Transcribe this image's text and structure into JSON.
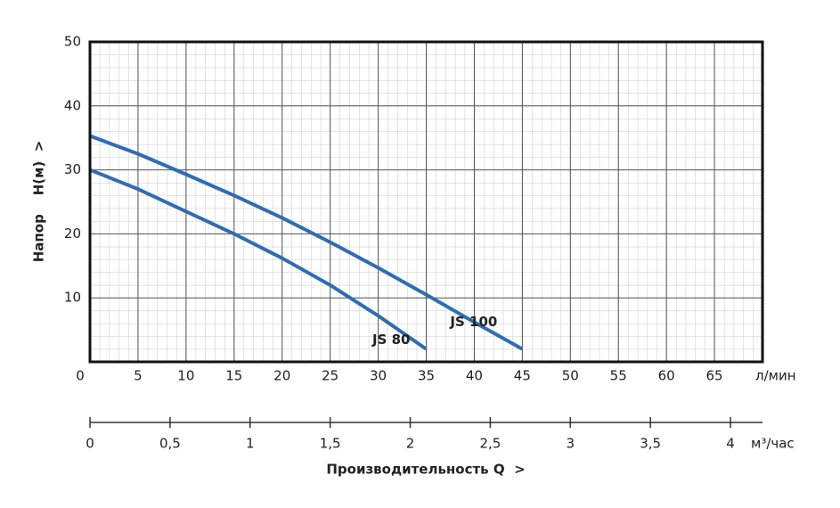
{
  "chart_data": {
    "type": "line",
    "y_label": "Напор    H(м)  >",
    "x_label": "Производительность Q  >",
    "x_unit": "л/мин",
    "x2_unit": "м³/час",
    "xlim": [
      0,
      70
    ],
    "xticks": [
      0,
      5,
      10,
      15,
      20,
      25,
      30,
      35,
      40,
      45,
      50,
      55,
      60,
      65
    ],
    "x2lim": [
      0,
      4.2
    ],
    "x2ticks": [
      0,
      {
        "value": 0.5,
        "label": "0,5"
      },
      1,
      {
        "value": 1.5,
        "label": "1,5"
      },
      2,
      {
        "value": 2.5,
        "label": "2,5"
      },
      3,
      {
        "value": 3.5,
        "label": "3,5"
      },
      4
    ],
    "ylim": [
      0,
      50
    ],
    "yticks": [
      10,
      20,
      30,
      40,
      50
    ],
    "grid": true,
    "series": [
      {
        "name": "JS 80",
        "color": "#2e6db4",
        "x": [
          0,
          5,
          10,
          15,
          20,
          25,
          30,
          35
        ],
        "values": [
          30,
          27,
          23.5,
          20,
          16.2,
          12,
          7.2,
          2
        ]
      },
      {
        "name": "JS 100",
        "color": "#2e6db4",
        "x": [
          0,
          5,
          10,
          15,
          20,
          25,
          30,
          35,
          40,
          45
        ],
        "values": [
          35.3,
          32.5,
          29.3,
          26,
          22.5,
          18.7,
          14.7,
          10.5,
          6.2,
          2
        ]
      }
    ]
  }
}
